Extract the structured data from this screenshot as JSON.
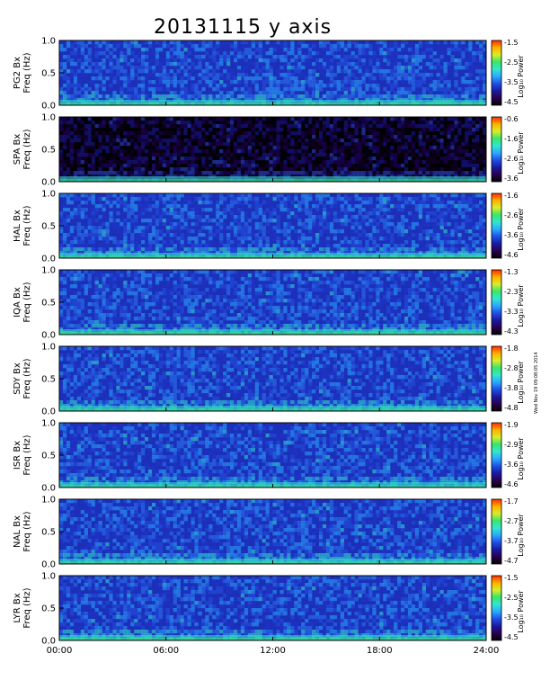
{
  "chart_data": {
    "type": "heatmap",
    "title": "20131115 y axis",
    "x": {
      "range": [
        0,
        24
      ],
      "ticks": [
        0,
        6,
        12,
        18,
        24
      ],
      "tick_labels": [
        "00:00",
        "06:00",
        "12:00",
        "18:00",
        "24:00"
      ]
    },
    "y": {
      "range": [
        0,
        1.0
      ],
      "ticks": [
        0.0,
        0.5,
        1.0
      ],
      "tick_labels": [
        "0.0",
        "0.5",
        "1.0"
      ]
    },
    "colorbar_title": "Log₁₀ Power",
    "panels": [
      {
        "station": "PG2",
        "label": "PG2 Bx",
        "ylabel": "Freq (Hz)",
        "cbar_ticks": [
          "-1.5",
          "-2.5",
          "-3.5",
          "-4.5"
        ],
        "cbar_range": [
          -4.5,
          -1.5
        ]
      },
      {
        "station": "SPA",
        "label": "SPA Bx",
        "ylabel": "Freq (Hz)",
        "cbar_ticks": [
          "-0.6",
          "-1.6",
          "-2.6",
          "-3.6"
        ],
        "cbar_range": [
          -3.6,
          -0.6
        ]
      },
      {
        "station": "HAL",
        "label": "HAL Bx",
        "ylabel": "Freq (Hz)",
        "cbar_ticks": [
          "-1.6",
          "-2.6",
          "-3.6",
          "-4.6"
        ],
        "cbar_range": [
          -4.6,
          -1.6
        ]
      },
      {
        "station": "IQA",
        "label": "IQA Bx",
        "ylabel": "Freq (Hz)",
        "cbar_ticks": [
          "-1.3",
          "-2.3",
          "-3.3",
          "-4.3"
        ],
        "cbar_range": [
          -4.3,
          -1.3
        ]
      },
      {
        "station": "SDY",
        "label": "SDY Bx",
        "ylabel": "Freq (Hz)",
        "cbar_ticks": [
          "-1.8",
          "-2.8",
          "-3.8",
          "-4.8"
        ],
        "cbar_range": [
          -4.8,
          -1.8
        ]
      },
      {
        "station": "ISR",
        "label": "ISR Bx",
        "ylabel": "Freq (Hz)",
        "cbar_ticks": [
          "-1.9",
          "-2.9",
          "-3.6",
          "-4.6"
        ],
        "cbar_range": [
          -4.6,
          -1.9
        ]
      },
      {
        "station": "NAL",
        "label": "NAL Bx",
        "ylabel": "Freq (Hz)",
        "cbar_ticks": [
          "-1.7",
          "-2.7",
          "-3.7",
          "-4.7"
        ],
        "cbar_range": [
          -4.7,
          -1.7
        ]
      },
      {
        "station": "LYR",
        "label": "LYR Bx",
        "ylabel": "Freq (Hz)",
        "cbar_ticks": [
          "-1.5",
          "-2.5",
          "-3.5",
          "-4.5"
        ],
        "cbar_range": [
          -4.5,
          -1.5
        ]
      }
    ],
    "colormap": [
      "#000000",
      "#2a0050",
      "#1a1aa0",
      "#1f4fe6",
      "#2aa8ff",
      "#33e6d0",
      "#39e66a",
      "#d8ee2a",
      "#ffb000",
      "#ff2a00"
    ]
  },
  "side_note": "Wed Nov 19 09:08:05 2014"
}
